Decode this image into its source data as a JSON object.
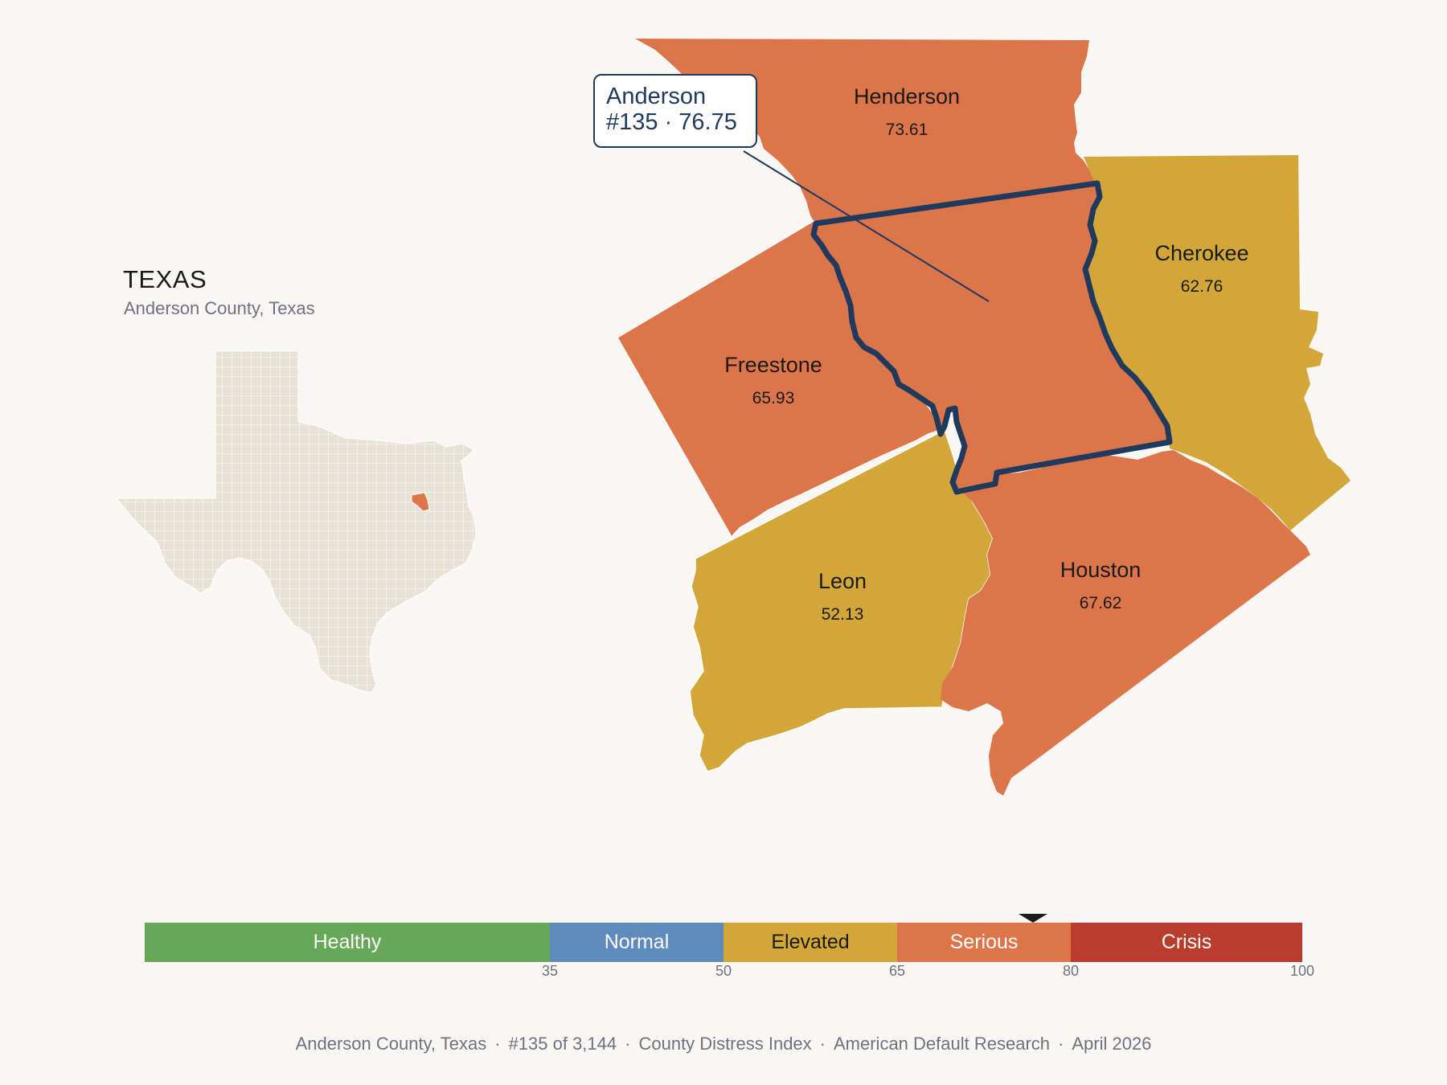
{
  "inset": {
    "state_title": "TEXAS",
    "subtitle": "Anderson County, Texas"
  },
  "focus_county": {
    "name": "Anderson",
    "rank_value": "#135 · 76.75",
    "score": 76.75,
    "color": "#dc764a",
    "outline_color": "#1f3a5c"
  },
  "neighbors": [
    {
      "name": "Henderson",
      "value": "73.61",
      "category": "Serious"
    },
    {
      "name": "Cherokee",
      "value": "62.76",
      "category": "Elevated"
    },
    {
      "name": "Freestone",
      "value": "65.93",
      "category": "Serious"
    },
    {
      "name": "Leon",
      "value": "52.13",
      "category": "Elevated"
    },
    {
      "name": "Houston",
      "value": "67.62",
      "category": "Serious"
    }
  ],
  "legend": {
    "segments": [
      {
        "label": "Healthy",
        "from": 0,
        "to": 35,
        "color": "#67a758",
        "text_color": "#ffffff"
      },
      {
        "label": "Normal",
        "from": 35,
        "to": 50,
        "color": "#5f8bbc",
        "text_color": "#ffffff"
      },
      {
        "label": "Elevated",
        "from": 50,
        "to": 65,
        "color": "#d3a63a",
        "text_color": "#1a1a1a"
      },
      {
        "label": "Serious",
        "from": 65,
        "to": 80,
        "color": "#dc764a",
        "text_color": "#ffffff"
      },
      {
        "label": "Crisis",
        "from": 80,
        "to": 100,
        "color": "#b93c2c",
        "text_color": "#ffffff"
      }
    ],
    "ticks": [
      "35",
      "50",
      "65",
      "80",
      "100"
    ],
    "marker_value": 76.75
  },
  "colors": {
    "background": "#f9f7f3",
    "state_fill": "#e8e2d6",
    "serious": "#dc764a",
    "elevated": "#d3a63a"
  },
  "footer": {
    "county": "Anderson County, Texas",
    "rank": "#135 of 3,144",
    "index": "County Distress Index",
    "source": "American Default Research",
    "date": "April 2026"
  }
}
